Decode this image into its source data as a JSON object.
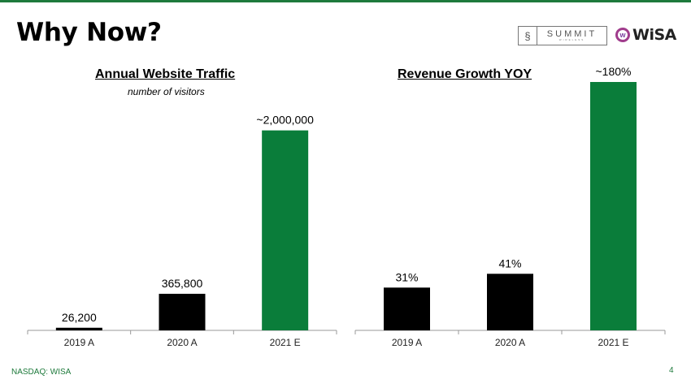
{
  "slide": {
    "title": "Why Now?",
    "page_number": "4",
    "footer": "NASDAQ: WISA",
    "logos": {
      "summit_name": "SUMMIT",
      "summit_sub": "WIRELESS",
      "wisa_name": "WiSA",
      "wisa_mark": "w"
    },
    "colors": {
      "accent_green": "#0a7d3a",
      "bar_black": "#000000",
      "top_rule": "#1e7a3c"
    }
  },
  "chart_data": [
    {
      "type": "bar",
      "title": "Annual Website Traffic",
      "subtitle": "number of visitors",
      "categories": [
        "2019 A",
        "2020 A",
        "2021 E"
      ],
      "values": [
        26200,
        365800,
        2000000
      ],
      "data_labels": [
        "26,200",
        "365,800",
        "~2,000,000"
      ],
      "colors": [
        "#000000",
        "#000000",
        "#0a7d3a"
      ],
      "xlabel": "",
      "ylabel": "",
      "ylim": [
        0,
        2200000
      ],
      "grid": false
    },
    {
      "type": "bar",
      "title": "Revenue Growth YOY",
      "subtitle": "",
      "categories": [
        "2019 A",
        "2020 A",
        "2021 E"
      ],
      "values": [
        31,
        41,
        180
      ],
      "data_labels": [
        "31%",
        "41%",
        "~180%"
      ],
      "colors": [
        "#000000",
        "#000000",
        "#0a7d3a"
      ],
      "xlabel": "",
      "ylabel": "",
      "ylim": [
        0,
        180
      ],
      "grid": false
    }
  ]
}
